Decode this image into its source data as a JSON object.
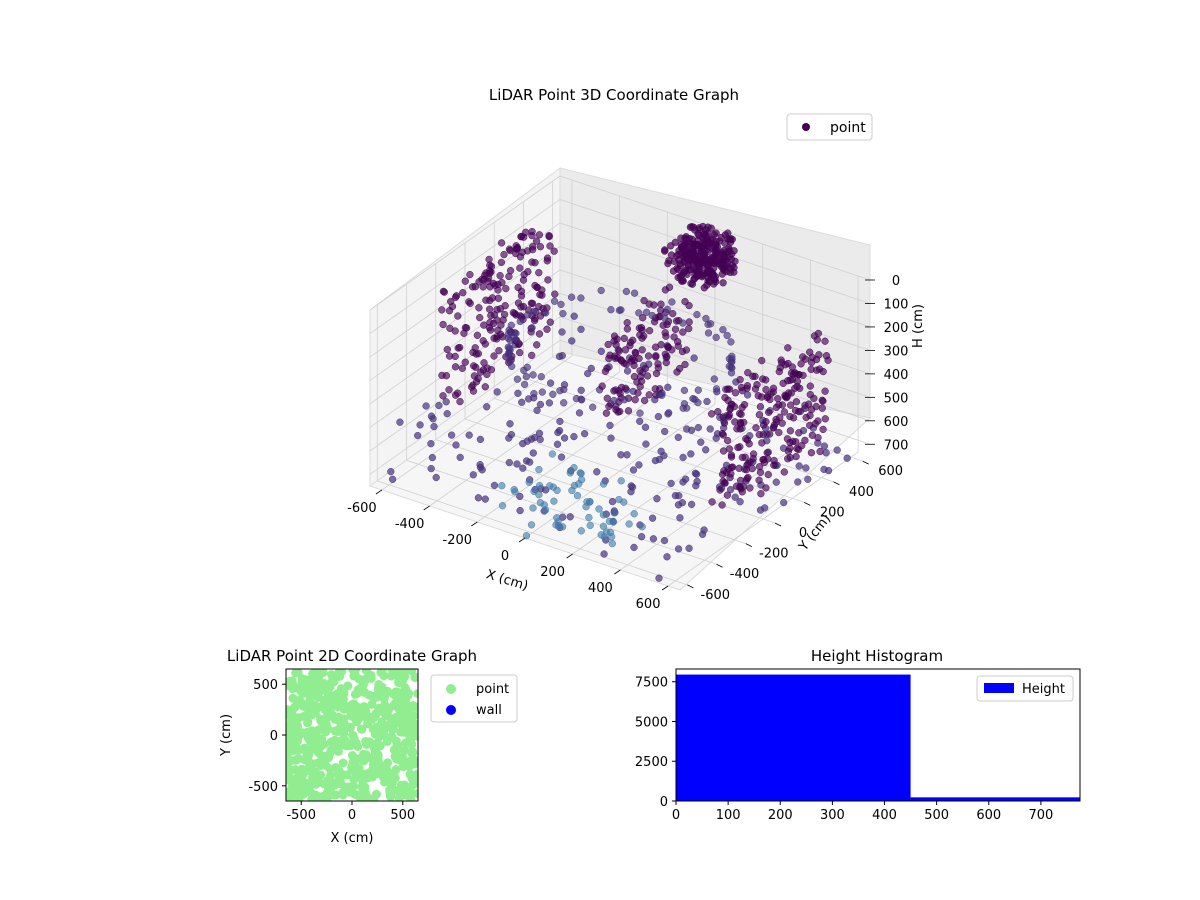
{
  "chart_data": [
    {
      "type": "scatter",
      "title": "LiDAR Point 3D Coordinate Graph",
      "xlabel": "X (cm)",
      "ylabel": "Y (cm)",
      "zlabel": "H (cm)",
      "xlim": [
        -650,
        650
      ],
      "ylim": [
        -650,
        650
      ],
      "zlim": [
        750,
        0
      ],
      "x_ticks": [
        "-600",
        "-400",
        "-200",
        "0",
        "200",
        "400",
        "600"
      ],
      "y_ticks": [
        "-600",
        "-400",
        "-200",
        "0",
        "200",
        "400",
        "600"
      ],
      "z_ticks": [
        "0",
        "100",
        "200",
        "300",
        "400",
        "500",
        "600",
        "700"
      ],
      "legend": [
        "point"
      ],
      "legend_position": "top-right",
      "grid": true,
      "colormap": "viridis",
      "colors": {
        "dense": "#440154",
        "mid": "#46327e",
        "light": "#3e7aa8",
        "pane": "#f2f2f2"
      },
      "clusters": [
        {
          "label": "center-top",
          "x": [
            -100,
            100
          ],
          "y": [
            450,
            650
          ],
          "z": [
            0,
            150
          ]
        },
        {
          "label": "left-wall",
          "x": [
            -650,
            -560
          ],
          "y": [
            -200,
            500
          ],
          "z": [
            100,
            600
          ]
        },
        {
          "label": "right-wall",
          "x": [
            560,
            650
          ],
          "y": [
            -300,
            400
          ],
          "z": [
            100,
            600
          ]
        },
        {
          "label": "floor-scatter",
          "x": [
            -650,
            650
          ],
          "y": [
            -650,
            650
          ],
          "z": [
            500,
            750
          ]
        }
      ]
    },
    {
      "type": "scatter",
      "title": "LiDAR Point 2D Coordinate Graph",
      "xlabel": "X (cm)",
      "ylabel": "Y (cm)",
      "xlim": [
        -650,
        650
      ],
      "ylim": [
        -650,
        650
      ],
      "x_ticks": [
        "-500",
        "0",
        "500"
      ],
      "y_ticks": [
        "500",
        "0",
        "-500"
      ],
      "series": [
        {
          "name": "point",
          "color": "#90ee90"
        },
        {
          "name": "wall",
          "color": "#0000ff"
        }
      ],
      "legend_position": "right-outside"
    },
    {
      "type": "bar",
      "title": "Height Histogram",
      "xlim": [
        0,
        775
      ],
      "ylim": [
        0,
        8300
      ],
      "x_ticks": [
        "0",
        "100",
        "200",
        "300",
        "400",
        "500",
        "600",
        "700"
      ],
      "y_ticks": [
        "0",
        "2500",
        "5000",
        "7500"
      ],
      "bins": [
        {
          "from": 0,
          "to": 450,
          "count": 7950
        },
        {
          "from": 450,
          "to": 775,
          "count": 230
        }
      ],
      "series": [
        {
          "name": "Height",
          "color": "#0000ff"
        }
      ],
      "legend_position": "top-right"
    }
  ]
}
